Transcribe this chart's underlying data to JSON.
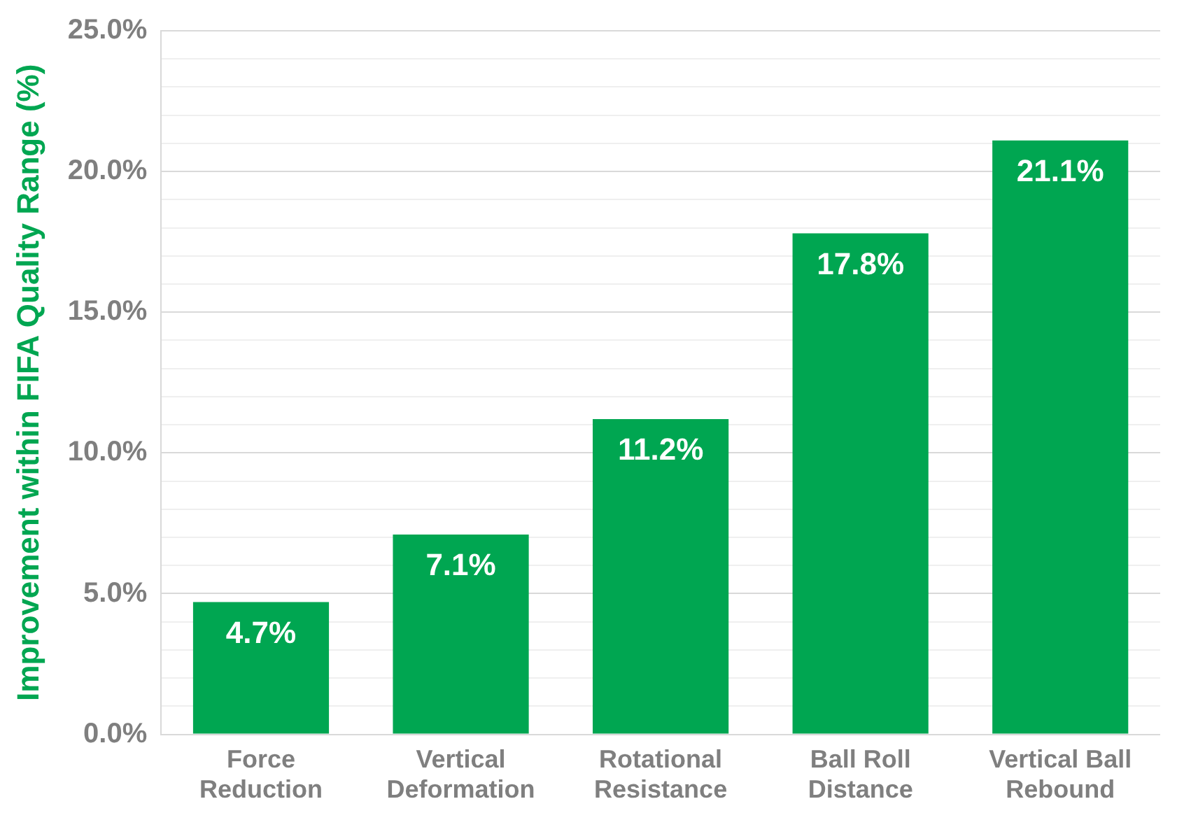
{
  "chart_data": {
    "type": "bar",
    "ylabel": "Improvement within FIFA Quality Range (%)",
    "categories": [
      "Force Reduction",
      "Vertical Deformation",
      "Rotational Resistance",
      "Ball Roll Distance",
      "Vertical Ball Rebound"
    ],
    "values": [
      4.7,
      7.1,
      11.2,
      17.8,
      21.1
    ],
    "color": "#00a651",
    "value_labels": [
      "4.7%",
      "7.1%",
      "11.2%",
      "17.8%",
      "21.1%"
    ],
    "ylim": [
      0,
      25
    ],
    "yticks": [
      {
        "value": 0,
        "label": "0.0%"
      },
      {
        "value": 1,
        "label": null
      },
      {
        "value": 2,
        "label": null
      },
      {
        "value": 3,
        "label": null
      },
      {
        "value": 4,
        "label": null
      },
      {
        "value": 5,
        "label": "5.0%"
      },
      {
        "value": 6,
        "label": null
      },
      {
        "value": 7,
        "label": null
      },
      {
        "value": 8,
        "label": null
      },
      {
        "value": 9,
        "label": null
      },
      {
        "value": 10,
        "label": "10.0%"
      },
      {
        "value": 11,
        "label": null
      },
      {
        "value": 12,
        "label": null
      },
      {
        "value": 13,
        "label": null
      },
      {
        "value": 14,
        "label": null
      },
      {
        "value": 15,
        "label": "15.0%"
      },
      {
        "value": 16,
        "label": null
      },
      {
        "value": 17,
        "label": null
      },
      {
        "value": 18,
        "label": null
      },
      {
        "value": 19,
        "label": null
      },
      {
        "value": 20,
        "label": "20.0%"
      },
      {
        "value": 21,
        "label": null
      },
      {
        "value": 22,
        "label": null
      },
      {
        "value": 23,
        "label": null
      },
      {
        "value": 24,
        "label": null
      },
      {
        "value": 25,
        "label": "25.0%"
      }
    ],
    "grid": "y",
    "legend": false
  }
}
